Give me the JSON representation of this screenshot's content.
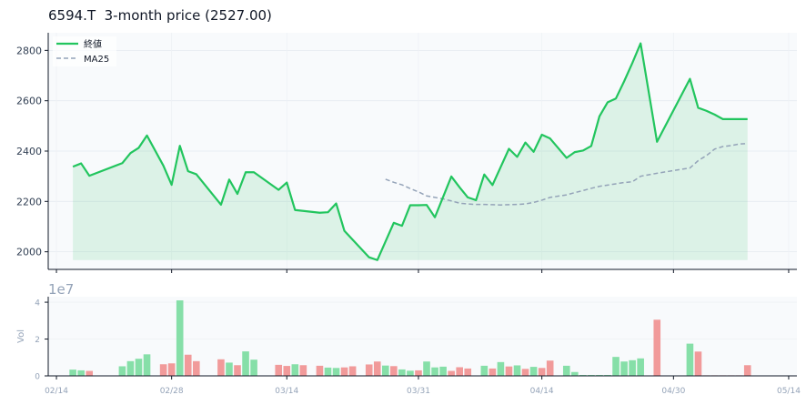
{
  "title": "6594.T  3-month price (2527.00)",
  "colors": {
    "price": "#22c55e",
    "ma": "#94a3b8",
    "fill": "#22c55e",
    "vol_up": "#86dfa8",
    "vol_down": "#f19a9a",
    "panel_bg": "#f8fafc",
    "axis": "#111827",
    "tick_text": "#334155",
    "muted": "#94a3b8"
  },
  "chart_data": [
    {
      "type": "line",
      "title": "6594.T  3-month price (2527.00)",
      "ylim": [
        1930,
        2870
      ],
      "yticks": [
        2000,
        2200,
        2400,
        2600,
        2800
      ],
      "xlim": [
        -1,
        90
      ],
      "grid": true,
      "legend_position": "top-left",
      "series": [
        {
          "name": "終値",
          "style": "solid",
          "fill": true,
          "x": [
            2,
            3,
            4,
            8,
            9,
            10,
            11,
            13,
            14,
            15,
            16,
            17,
            20,
            21,
            22,
            23,
            24,
            27,
            28,
            29,
            32,
            33,
            34,
            35,
            38,
            39,
            41,
            42,
            43,
            44,
            45,
            46,
            47,
            48,
            49,
            50,
            51,
            52,
            53,
            54,
            55,
            56,
            57,
            58,
            59,
            60,
            62,
            63,
            64,
            65,
            66,
            67,
            68,
            69,
            70,
            71,
            73,
            77,
            78,
            79,
            80,
            81,
            82,
            83,
            84
          ],
          "y": [
            2338,
            2351,
            2302,
            2352,
            2392,
            2413,
            2462,
            2342,
            2266,
            2421,
            2320,
            2308,
            2187,
            2287,
            2230,
            2316,
            2316,
            2246,
            2275,
            2166,
            2155,
            2157,
            2192,
            2083,
            1978,
            1967,
            2115,
            2103,
            2185,
            2185,
            2186,
            2137,
            2218,
            2299,
            2256,
            2216,
            2205,
            2307,
            2265,
            2337,
            2409,
            2377,
            2434,
            2397,
            2465,
            2450,
            2373,
            2396,
            2402,
            2420,
            2538,
            2594,
            2609,
            2677,
            2750,
            2828,
            2437,
            2687,
            2572,
            2560,
            2545,
            2527,
            2527,
            2527,
            2527
          ]
        },
        {
          "name": "MA25",
          "style": "dashed",
          "x": [
            40,
            41,
            42,
            43,
            44,
            45,
            46,
            47,
            48,
            49,
            50,
            51,
            52,
            53,
            54,
            55,
            56,
            57,
            58,
            59,
            60,
            62,
            63,
            64,
            65,
            66,
            67,
            68,
            69,
            70,
            71,
            73,
            77,
            78,
            79,
            80,
            81,
            82,
            83,
            84
          ],
          "y": [
            2288,
            2276,
            2266,
            2251,
            2238,
            2222,
            2216,
            2210,
            2202,
            2193,
            2190,
            2188,
            2188,
            2187,
            2186,
            2187,
            2188,
            2190,
            2196,
            2205,
            2216,
            2226,
            2235,
            2243,
            2252,
            2260,
            2265,
            2270,
            2275,
            2278,
            2300,
            2312,
            2333,
            2362,
            2382,
            2408,
            2418,
            2422,
            2428,
            2430
          ]
        }
      ]
    },
    {
      "type": "bar",
      "ylabel": "Vol",
      "scale_label": "1e7",
      "ylim": [
        0,
        4.3
      ],
      "yticks": [
        0,
        2,
        4
      ],
      "xlim": [
        -1,
        90
      ],
      "x_tick_positions": [
        0,
        14,
        28,
        44,
        59,
        75,
        89
      ],
      "x_tick_labels": [
        "02/14",
        "02/28",
        "03/14",
        "03/31",
        "04/14",
        "04/30",
        "05/14"
      ],
      "series": [
        {
          "name": "vol",
          "x": [
            2,
            3,
            4,
            8,
            9,
            10,
            11,
            13,
            14,
            15,
            16,
            17,
            20,
            21,
            22,
            23,
            24,
            27,
            28,
            29,
            30,
            32,
            33,
            34,
            35,
            36,
            38,
            39,
            40,
            41,
            42,
            43,
            44,
            45,
            46,
            47,
            48,
            49,
            50,
            52,
            53,
            54,
            55,
            56,
            57,
            58,
            59,
            60,
            62,
            63,
            64,
            65,
            66,
            67,
            68,
            69,
            70,
            71,
            73,
            77,
            78,
            79,
            80,
            81,
            82,
            83,
            84
          ],
          "values": [
            0.34,
            0.3,
            0.27,
            0.52,
            0.8,
            0.93,
            1.17,
            0.63,
            0.68,
            4.1,
            1.15,
            0.8,
            0.9,
            0.72,
            0.58,
            1.33,
            0.88,
            0.6,
            0.54,
            0.63,
            0.58,
            0.55,
            0.45,
            0.43,
            0.46,
            0.52,
            0.62,
            0.78,
            0.56,
            0.53,
            0.35,
            0.28,
            0.3,
            0.78,
            0.46,
            0.5,
            0.27,
            0.47,
            0.4,
            0.55,
            0.4,
            0.75,
            0.51,
            0.57,
            0.38,
            0.49,
            0.43,
            0.83,
            0.55,
            0.21,
            0.05,
            0.05,
            0.05,
            0.05,
            1.03,
            0.78,
            0.85,
            0.95,
            3.05,
            1.75,
            1.32,
            0.03,
            0.03,
            0.03,
            0.03,
            0.03,
            0.58
          ],
          "up": [
            1,
            1,
            0,
            1,
            1,
            1,
            1,
            0,
            0,
            1,
            0,
            0,
            0,
            1,
            0,
            1,
            1,
            0,
            0,
            1,
            0,
            0,
            1,
            1,
            0,
            0,
            0,
            0,
            1,
            0,
            1,
            1,
            0,
            1,
            1,
            1,
            0,
            0,
            0,
            1,
            0,
            1,
            0,
            1,
            0,
            1,
            0,
            0,
            1,
            1,
            1,
            1,
            1,
            1,
            1,
            1,
            1,
            1,
            0,
            1,
            0,
            0,
            0,
            0,
            0,
            0,
            0
          ]
        }
      ]
    }
  ]
}
